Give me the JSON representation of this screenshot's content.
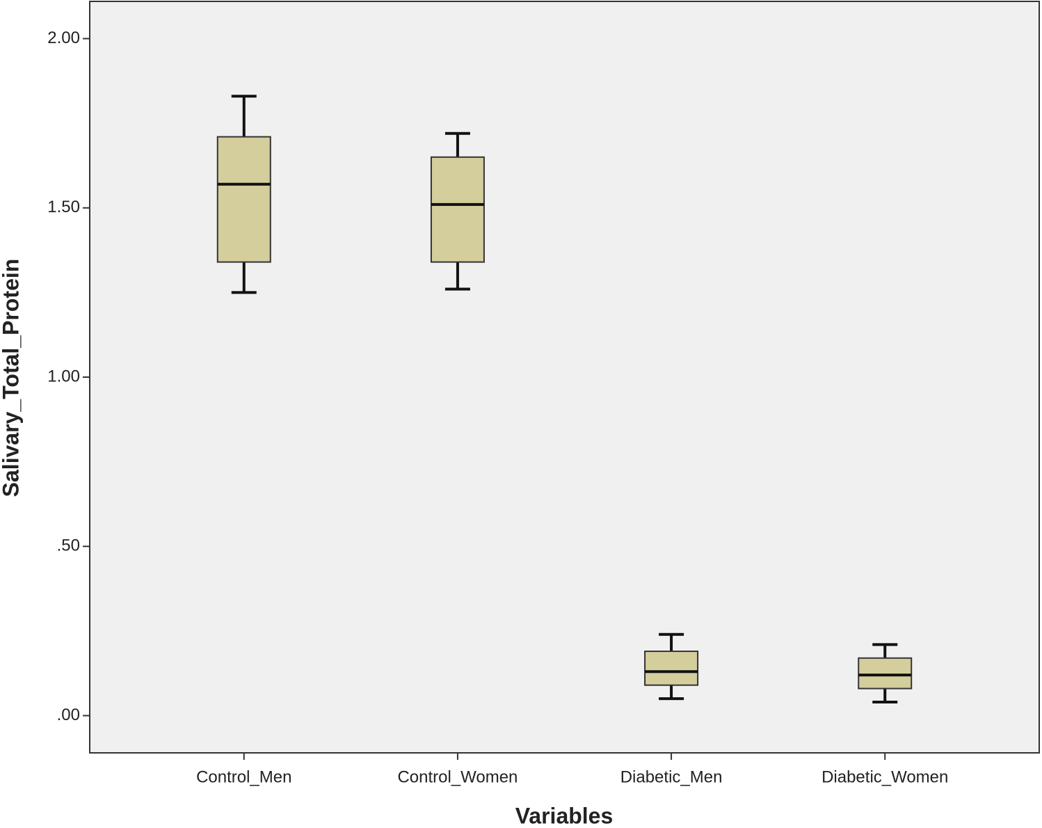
{
  "chart_data": {
    "type": "box",
    "x_label": "Variables",
    "y_label": "Salivary_Total_Protein",
    "categories": [
      "Control_Men",
      "Control_Women",
      "Diabetic_Men",
      "Diabetic_Women"
    ],
    "min": [
      1.25,
      1.26,
      0.05,
      0.04
    ],
    "q1": [
      1.34,
      1.34,
      0.09,
      0.08
    ],
    "median": [
      1.57,
      1.51,
      0.13,
      0.12
    ],
    "q3": [
      1.71,
      1.65,
      0.19,
      0.17
    ],
    "max": [
      1.83,
      1.72,
      0.24,
      0.21
    ],
    "color": "#d3ce9c",
    "ylim": [
      -0.11,
      2.11
    ],
    "yticks": [
      {
        "value": 0,
        "label": ".00"
      },
      {
        "value": 0.5,
        "label": ".50"
      },
      {
        "value": 1,
        "label": "1.00"
      },
      {
        "value": 1.5,
        "label": "1.50"
      },
      {
        "value": 2,
        "label": "2.00"
      }
    ]
  }
}
